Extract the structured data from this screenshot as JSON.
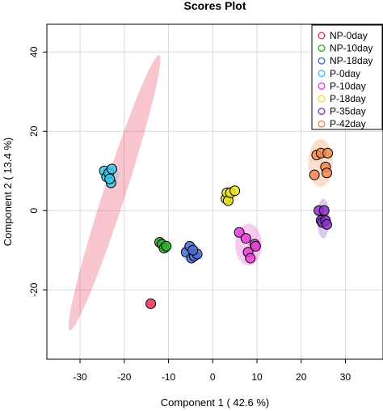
{
  "chart_data": {
    "type": "scatter",
    "title": "Scores Plot",
    "xlabel": "Component 1 ( 42.6 %)",
    "ylabel": "Component 2 ( 13.4 %)",
    "xlim": [
      -37.5,
      38.5
    ],
    "ylim": [
      -37.5,
      47
    ],
    "xticks": [
      -30,
      -20,
      -10,
      0,
      10,
      20,
      30
    ],
    "yticks": [
      -20,
      0,
      20,
      40
    ],
    "grid": true,
    "legend_position": "top-right",
    "series": [
      {
        "name": "NP-0day",
        "color": "#e8304f",
        "points": [
          [
            -14,
            -23.5
          ]
        ]
      },
      {
        "name": "NP-10day",
        "color": "#2fae2f",
        "points": [
          [
            -12,
            -8
          ],
          [
            -11.5,
            -8.5
          ],
          [
            -11,
            -9.5
          ],
          [
            -10.5,
            -9
          ]
        ]
      },
      {
        "name": "NP-18day",
        "color": "#4a6fd6",
        "points": [
          [
            -6,
            -10.5
          ],
          [
            -5.2,
            -9
          ],
          [
            -4.8,
            -12
          ],
          [
            -4.2,
            -11.5
          ],
          [
            -3.5,
            -11
          ],
          [
            -4.5,
            -10
          ]
        ]
      },
      {
        "name": "P-0day",
        "color": "#3cc6e8",
        "points": [
          [
            -24.5,
            10
          ],
          [
            -24,
            8.5
          ],
          [
            -23.5,
            9.5
          ],
          [
            -23,
            7
          ],
          [
            -22.8,
            10.5
          ],
          [
            -23.3,
            8
          ]
        ]
      },
      {
        "name": "P-10day",
        "color": "#e840d8",
        "points": [
          [
            6,
            -5.5
          ],
          [
            7.5,
            -7
          ],
          [
            8,
            -10.5
          ],
          [
            8.5,
            -12
          ],
          [
            9.5,
            -8.5
          ],
          [
            9.7,
            -9
          ]
        ]
      },
      {
        "name": "P-18day",
        "color": "#e6e02a",
        "points": [
          [
            3,
            3
          ],
          [
            3.2,
            4.5
          ],
          [
            3.5,
            2.5
          ],
          [
            4,
            4.5
          ],
          [
            5,
            5
          ]
        ]
      },
      {
        "name": "P-35day",
        "color": "#8a35c8",
        "points": [
          [
            24,
            0
          ],
          [
            24.5,
            -2.5
          ],
          [
            24.8,
            -3
          ],
          [
            25.2,
            0
          ],
          [
            25.5,
            -2.5
          ],
          [
            25.8,
            -3.5
          ]
        ]
      },
      {
        "name": "P-42day",
        "color": "#f08a50",
        "points": [
          [
            23,
            9
          ],
          [
            23.5,
            14
          ],
          [
            24.5,
            14.5
          ],
          [
            25.5,
            11
          ],
          [
            25.8,
            9.5
          ],
          [
            26,
            14.5
          ]
        ]
      }
    ],
    "ellipses": [
      {
        "group": "NP-0day",
        "color": "#e8304f",
        "cx": -22.2,
        "cy": 4.5,
        "rx": 36.5,
        "ry": 2.5,
        "angle": -72
      },
      {
        "group": "P-0day",
        "color": "#3cc6e8",
        "cx": -23.3,
        "cy": 9,
        "rx": 2.2,
        "ry": 1.8,
        "angle": 0
      },
      {
        "group": "NP-10day",
        "color": "#2fae2f",
        "cx": -11.3,
        "cy": -8.6,
        "rx": 1.4,
        "ry": 1.3,
        "angle": 0
      },
      {
        "group": "NP-18day",
        "color": "#4a6fd6",
        "cx": -4.9,
        "cy": -10.5,
        "rx": 2.3,
        "ry": 2.2,
        "angle": 0
      },
      {
        "group": "P-18day",
        "color": "#e6e02a",
        "cx": 3.8,
        "cy": 3.8,
        "rx": 1.3,
        "ry": 2.4,
        "angle": 0
      },
      {
        "group": "P-10day",
        "color": "#e840d8",
        "cx": 8.1,
        "cy": -8.6,
        "rx": 3.0,
        "ry": 5.3,
        "angle": 0
      },
      {
        "group": "P-42day",
        "color": "#f08a50",
        "cx": 24.4,
        "cy": 12.0,
        "rx": 2.8,
        "ry": 6.0,
        "angle": 0
      },
      {
        "group": "P-35day",
        "color": "#8a35c8",
        "cx": 25.0,
        "cy": -2.0,
        "rx": 1.4,
        "ry": 5.0,
        "angle": 0
      }
    ]
  }
}
